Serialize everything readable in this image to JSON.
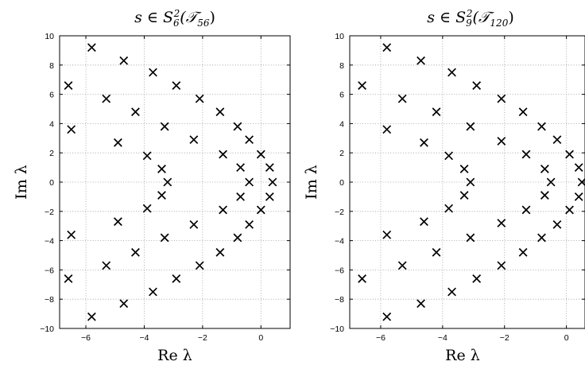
{
  "chart_data": [
    {
      "type": "scatter",
      "title_parts": [
        "s ∈ S",
        "6",
        "2",
        "(𝒯",
        "56",
        ")"
      ],
      "xlabel": "Re λ",
      "ylabel": "Im λ",
      "xlim": [
        -6.9,
        1.0
      ],
      "ylim": [
        -10,
        10
      ],
      "xticks": [
        -6,
        -4,
        -2,
        0
      ],
      "yticks": [
        -10,
        -8,
        -6,
        -4,
        -2,
        0,
        2,
        4,
        6,
        8,
        10
      ],
      "grid": true,
      "marker": "x",
      "points": [
        [
          -6.6,
          6.6
        ],
        [
          -5.8,
          9.2
        ],
        [
          -4.7,
          8.3
        ],
        [
          -3.7,
          7.5
        ],
        [
          -2.9,
          6.6
        ],
        [
          -2.1,
          5.7
        ],
        [
          -1.4,
          4.8
        ],
        [
          -0.8,
          3.8
        ],
        [
          -0.4,
          2.9
        ],
        [
          0.0,
          1.9
        ],
        [
          0.3,
          1.0
        ],
        [
          0.4,
          0.0
        ],
        [
          -6.5,
          3.6
        ],
        [
          -5.3,
          5.7
        ],
        [
          -4.3,
          4.8
        ],
        [
          -3.3,
          3.8
        ],
        [
          -2.3,
          2.9
        ],
        [
          -1.3,
          1.9
        ],
        [
          -0.7,
          1.0
        ],
        [
          -0.4,
          0.0
        ],
        [
          -4.9,
          2.7
        ],
        [
          -3.9,
          1.8
        ],
        [
          -3.4,
          0.9
        ],
        [
          -3.2,
          0.0
        ],
        [
          -6.6,
          -6.6
        ],
        [
          -5.8,
          -9.2
        ],
        [
          -4.7,
          -8.3
        ],
        [
          -3.7,
          -7.5
        ],
        [
          -2.9,
          -6.6
        ],
        [
          -2.1,
          -5.7
        ],
        [
          -1.4,
          -4.8
        ],
        [
          -0.8,
          -3.8
        ],
        [
          -0.4,
          -2.9
        ],
        [
          0.0,
          -1.9
        ],
        [
          0.3,
          -1.0
        ],
        [
          -6.5,
          -3.6
        ],
        [
          -5.3,
          -5.7
        ],
        [
          -4.3,
          -4.8
        ],
        [
          -3.3,
          -3.8
        ],
        [
          -2.3,
          -2.9
        ],
        [
          -1.3,
          -1.9
        ],
        [
          -0.7,
          -1.0
        ],
        [
          -4.9,
          -2.7
        ],
        [
          -3.9,
          -1.8
        ],
        [
          -3.4,
          -0.9
        ]
      ]
    },
    {
      "type": "scatter",
      "title_parts": [
        "s ∈ S",
        "9",
        "2",
        "(𝒯",
        "120",
        ")"
      ],
      "xlabel": "Re λ",
      "ylabel": "Im λ",
      "xlim": [
        -7.0,
        0.6
      ],
      "ylim": [
        -10,
        10
      ],
      "xticks": [
        -6,
        -4,
        -2,
        0
      ],
      "yticks": [
        -10,
        -8,
        -6,
        -4,
        -2,
        0,
        2,
        4,
        6,
        8,
        10
      ],
      "grid": true,
      "marker": "x",
      "points": [
        [
          -6.6,
          6.6
        ],
        [
          -5.8,
          9.2
        ],
        [
          -4.7,
          8.3
        ],
        [
          -3.7,
          7.5
        ],
        [
          -2.9,
          6.6
        ],
        [
          -2.1,
          5.7
        ],
        [
          -1.4,
          4.8
        ],
        [
          -0.8,
          3.8
        ],
        [
          -0.3,
          2.9
        ],
        [
          0.1,
          1.9
        ],
        [
          0.4,
          1.0
        ],
        [
          0.5,
          0.0
        ],
        [
          -5.8,
          3.6
        ],
        [
          -5.3,
          5.7
        ],
        [
          -4.2,
          4.8
        ],
        [
          -3.1,
          3.8
        ],
        [
          -2.1,
          2.8
        ],
        [
          -1.3,
          1.9
        ],
        [
          -0.7,
          0.9
        ],
        [
          -0.5,
          0.0
        ],
        [
          -4.6,
          2.7
        ],
        [
          -3.8,
          1.8
        ],
        [
          -3.3,
          0.9
        ],
        [
          -3.1,
          0.0
        ],
        [
          -6.6,
          -6.6
        ],
        [
          -5.8,
          -9.2
        ],
        [
          -4.7,
          -8.3
        ],
        [
          -3.7,
          -7.5
        ],
        [
          -2.9,
          -6.6
        ],
        [
          -2.1,
          -5.7
        ],
        [
          -1.4,
          -4.8
        ],
        [
          -0.8,
          -3.8
        ],
        [
          -0.3,
          -2.9
        ],
        [
          0.1,
          -1.9
        ],
        [
          0.4,
          -1.0
        ],
        [
          -5.8,
          -3.6
        ],
        [
          -5.3,
          -5.7
        ],
        [
          -4.2,
          -4.8
        ],
        [
          -3.1,
          -3.8
        ],
        [
          -2.1,
          -2.8
        ],
        [
          -1.3,
          -1.9
        ],
        [
          -0.7,
          -0.9
        ],
        [
          -4.6,
          -2.7
        ],
        [
          -3.8,
          -1.8
        ],
        [
          -3.3,
          -0.9
        ]
      ]
    }
  ]
}
